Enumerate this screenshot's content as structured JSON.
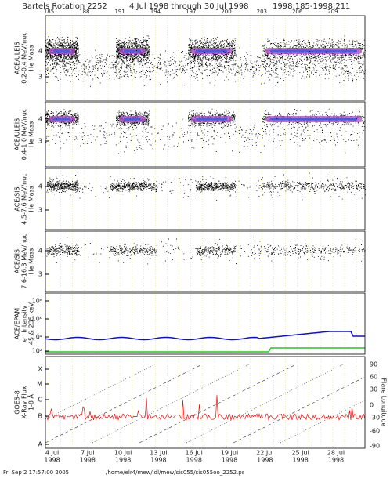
{
  "header": {
    "title": "Bartels Rotation 2252",
    "range": "4 Jul 1998 through 30 Jul 1998",
    "doy_range": "1998:185-1998:211"
  },
  "top_ticks": [
    "185",
    "188",
    "191",
    "194",
    "197",
    "200",
    "203",
    "206",
    "209"
  ],
  "panels": [
    {
      "labels": [
        "ACE/ULEIS",
        "0.2-0.4 MeV/nuc",
        "He Mass"
      ],
      "ticks": [
        "4",
        "3"
      ]
    },
    {
      "labels": [
        "ACE/ULEIS",
        "0.4-1.0 MeV/nuc",
        "He Mass"
      ],
      "ticks": [
        "4",
        "3"
      ]
    },
    {
      "labels": [
        "ACE/SIS",
        "4.5-7.6 MeV/nuc",
        "He Mass"
      ],
      "ticks": [
        "4",
        "3"
      ]
    },
    {
      "labels": [
        "ACE/SIS",
        "7.6-16.3 MeV/nuc",
        "He Mass"
      ],
      "ticks": [
        "4",
        "3"
      ]
    },
    {
      "labels": [
        "ACE/EPAM",
        "e⁻ Intensity",
        "45 & 235 keV"
      ],
      "ticks": [
        "10⁸",
        "10⁶",
        "10⁴",
        "10²"
      ]
    },
    {
      "labels": [
        "GOES-8",
        "X-Ray Flux",
        "1-8 Å"
      ],
      "ticks": [
        "X",
        "M",
        "C",
        "B",
        "A"
      ],
      "right_ticks": [
        "90",
        "60",
        "30",
        "0",
        "-30",
        "-60",
        "-90"
      ],
      "right_label": "Flare Longitude"
    }
  ],
  "x_labels": [
    [
      "4 Jul",
      "1998"
    ],
    [
      "7 Jul",
      "1998"
    ],
    [
      "10 Jul",
      "1998"
    ],
    [
      "13 Jul",
      "1998"
    ],
    [
      "16 Jul",
      "1998"
    ],
    [
      "19 Jul",
      "1998"
    ],
    [
      "22 Jul",
      "1998"
    ],
    [
      "25 Jul",
      "1998"
    ],
    [
      "28 Jul",
      "1998"
    ]
  ],
  "footer": {
    "date": "Fri Sep  2 17:57:00 2005",
    "path": "/home/elr4/mew/idl/mew/sis055/sis055oo_2252.ps"
  }
}
